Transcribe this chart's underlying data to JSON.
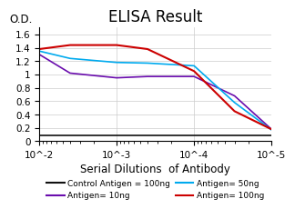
{
  "title": "ELISA Result",
  "ylabel": "O.D.",
  "xlabel": "Serial Dilutions  of Antibody",
  "xlim": [
    1e-05,
    0.01
  ],
  "ylim": [
    0,
    1.7
  ],
  "yticks": [
    0,
    0.2,
    0.4,
    0.6,
    0.8,
    1.0,
    1.2,
    1.4,
    1.6
  ],
  "ytick_labels": [
    "0",
    "0.2",
    "0.4",
    "0.6",
    "0.8",
    "1",
    "1.2",
    "1.4",
    "1.6"
  ],
  "xticks": [
    0.01,
    0.001,
    0.0001,
    1e-05
  ],
  "xtick_labels": [
    "10^-2",
    "10^-3",
    "10^-4",
    "10^-5"
  ],
  "x_points": [
    0.01,
    0.004,
    0.001,
    0.0004,
    0.0001,
    3e-05,
    1e-05
  ],
  "series": [
    {
      "label": "Control Antigen = 100ng",
      "color": "#111111",
      "linewidth": 1.2,
      "y": [
        0.09,
        0.09,
        0.09,
        0.09,
        0.09,
        0.09,
        0.09
      ]
    },
    {
      "label": "Antigen= 10ng",
      "color": "#6a0dad",
      "linewidth": 1.2,
      "y": [
        1.3,
        1.02,
        0.95,
        0.97,
        0.97,
        0.68,
        0.18
      ]
    },
    {
      "label": "Antigen= 50ng",
      "color": "#00aaee",
      "linewidth": 1.2,
      "y": [
        1.35,
        1.24,
        1.18,
        1.17,
        1.13,
        0.58,
        0.17
      ]
    },
    {
      "label": "Antigen= 100ng",
      "color": "#cc0000",
      "linewidth": 1.5,
      "y": [
        1.38,
        1.44,
        1.44,
        1.38,
        1.05,
        0.45,
        0.18
      ]
    }
  ],
  "background_color": "#ffffff",
  "title_fontsize": 12,
  "axis_label_fontsize": 8.5,
  "tick_fontsize": 7.5,
  "legend_fontsize": 6.5,
  "grid_color": "#cccccc",
  "grid_linewidth": 0.5
}
